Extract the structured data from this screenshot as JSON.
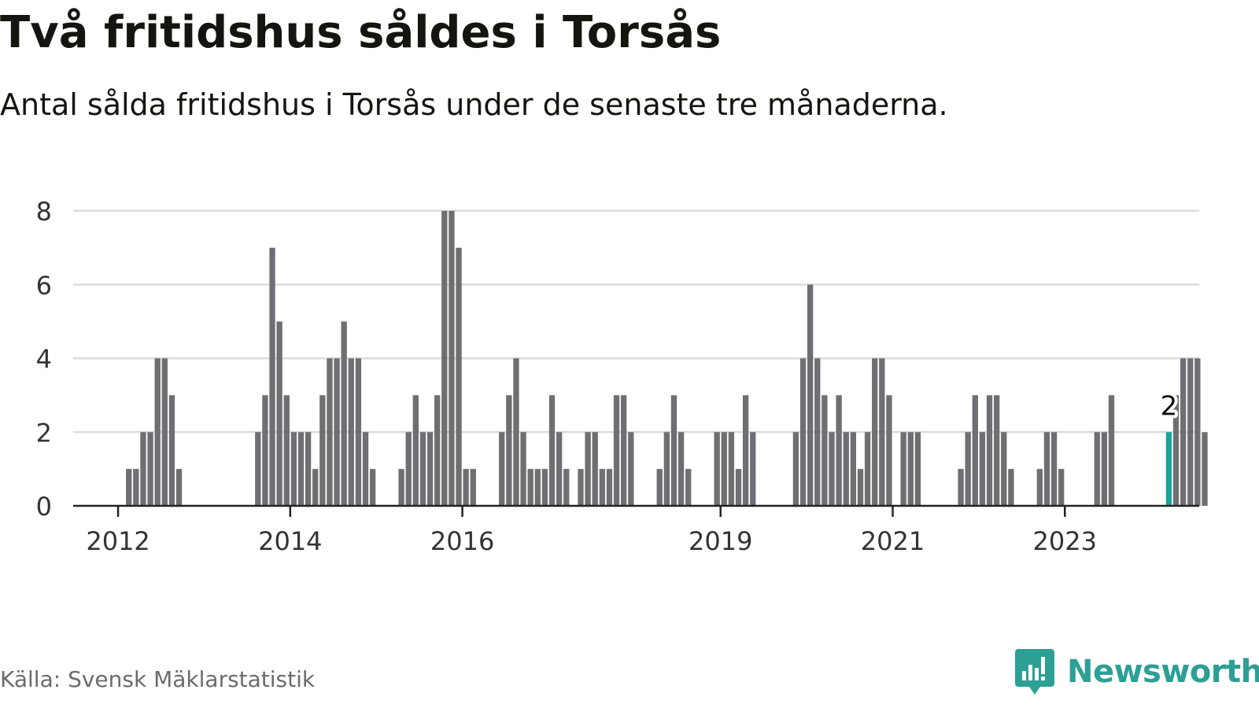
{
  "header": {
    "title": "Två fritidshus såldes i Torsås",
    "subtitle": "Antal sålda fritidshus i Torsås under de senaste tre månaderna."
  },
  "footer": {
    "source": "Källa: Svensk Mäklarstatistik",
    "brand_name": "Newsworthy",
    "brand_icon": "bar-chart-speech-bubble-icon"
  },
  "colors": {
    "bar": "#6e6e73",
    "highlight": "#1aa396",
    "grid": "#dcdcdc",
    "axis": "#222222",
    "brand": "#2d9f94",
    "source_text": "#6b6b70"
  },
  "chart_data": {
    "type": "bar",
    "title": "Två fritidshus såldes i Torsås",
    "subtitle": "Antal sålda fritidshus i Torsås under de senaste tre månaderna.",
    "xlabel": "",
    "ylabel": "",
    "ylim": [
      0,
      8
    ],
    "yticks": [
      0,
      2,
      4,
      6,
      8
    ],
    "grid": true,
    "legend": "none",
    "x_start": "2011-05",
    "frequency": "monthly",
    "x_tick_labels": [
      {
        "date": "2012-01",
        "label": "2012"
      },
      {
        "date": "2014-01",
        "label": "2014"
      },
      {
        "date": "2016-01",
        "label": "2016"
      },
      {
        "date": "2019-01",
        "label": "2019"
      },
      {
        "date": "2021-01",
        "label": "2021"
      },
      {
        "date": "2023-01",
        "label": "2023"
      }
    ],
    "values": [
      0,
      0,
      0,
      0,
      0,
      0,
      0,
      0,
      0,
      1,
      1,
      2,
      2,
      4,
      4,
      3,
      1,
      0,
      0,
      0,
      0,
      0,
      0,
      0,
      0,
      0,
      0,
      2,
      3,
      7,
      5,
      3,
      2,
      2,
      2,
      1,
      3,
      4,
      4,
      5,
      4,
      4,
      2,
      1,
      0,
      0,
      0,
      1,
      2,
      3,
      2,
      2,
      3,
      8,
      8,
      7,
      1,
      1,
      0,
      0,
      0,
      2,
      3,
      4,
      2,
      1,
      1,
      1,
      3,
      2,
      1,
      0,
      1,
      2,
      2,
      1,
      1,
      3,
      3,
      2,
      0,
      0,
      0,
      1,
      2,
      3,
      2,
      1,
      0,
      0,
      0,
      2,
      2,
      2,
      1,
      3,
      2,
      0,
      0,
      0,
      0,
      0,
      2,
      4,
      6,
      4,
      3,
      2,
      3,
      2,
      2,
      1,
      2,
      4,
      4,
      3,
      0,
      2,
      2,
      2,
      0,
      0,
      0,
      0,
      0,
      1,
      2,
      3,
      2,
      3,
      3,
      2,
      1,
      0,
      0,
      0,
      1,
      2,
      2,
      1,
      0,
      0,
      0,
      0,
      2,
      2,
      3,
      0,
      0,
      0,
      0,
      0,
      0,
      0,
      2,
      3,
      4,
      4,
      4,
      2
    ],
    "highlight": {
      "index": 154,
      "value": 2,
      "label": "2"
    }
  }
}
